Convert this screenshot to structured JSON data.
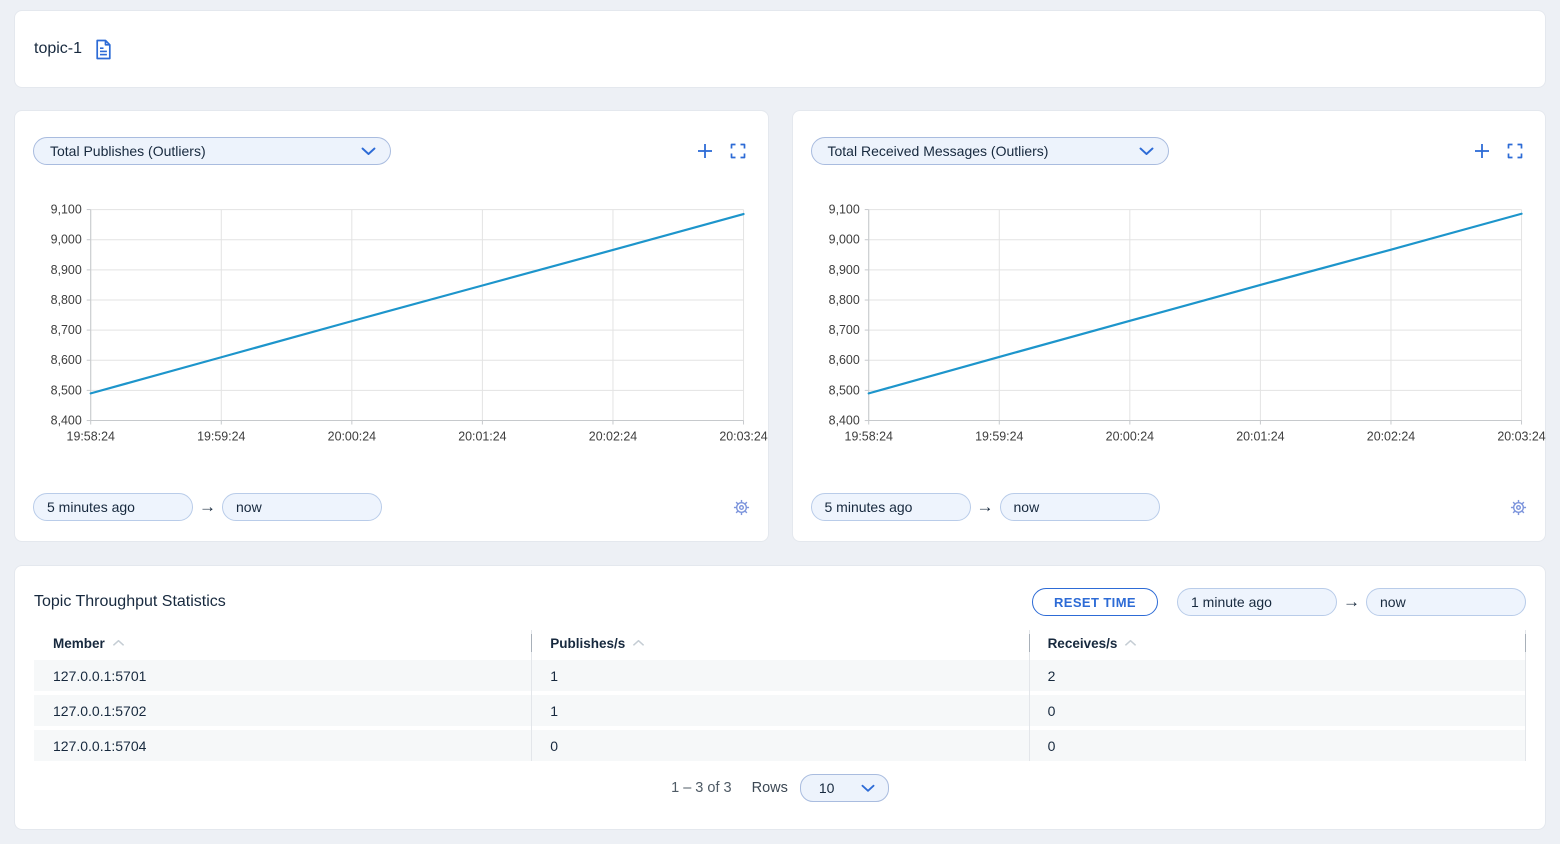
{
  "accent_color": "#2d6bd6",
  "topbar": {
    "title": "topic-1"
  },
  "icons": {
    "arrow": "→"
  },
  "charts": [
    {
      "metric_selector": "Total Publishes (Outliers)",
      "time_from": "5 minutes ago",
      "time_to": "now",
      "chart_data": {
        "type": "line",
        "x": [
          "19:58:24",
          "19:59:24",
          "20:00:24",
          "20:01:24",
          "20:02:24",
          "20:03:24"
        ],
        "series": [
          {
            "name": "Total Publishes",
            "values": [
              8490,
              8610,
              8730,
              8848,
              8966,
              9085
            ]
          }
        ],
        "ylim": [
          8400,
          9100
        ],
        "ytick_step": 100,
        "line_color": "#1d95cb",
        "grid": true,
        "legend": "none"
      }
    },
    {
      "metric_selector": "Total Received Messages (Outliers)",
      "time_from": "5 minutes ago",
      "time_to": "now",
      "chart_data": {
        "type": "line",
        "x": [
          "19:58:24",
          "19:59:24",
          "20:00:24",
          "20:01:24",
          "20:02:24",
          "20:03:24"
        ],
        "series": [
          {
            "name": "Total Received Messages",
            "values": [
              8490,
              8611,
              8731,
              8850,
              8967,
              9086
            ]
          }
        ],
        "ylim": [
          8400,
          9100
        ],
        "ytick_step": 100,
        "line_color": "#1d95cb",
        "grid": true,
        "legend": "none"
      }
    }
  ],
  "stats": {
    "title": "Topic Throughput Statistics",
    "reset_button": "RESET TIME",
    "time_from": "1 minute ago",
    "time_to": "now",
    "table": {
      "columns": [
        "Member",
        "Publishes/s",
        "Receives/s"
      ],
      "rows": [
        [
          "127.0.0.1:5701",
          "1",
          "2"
        ],
        [
          "127.0.0.1:5702",
          "1",
          "0"
        ],
        [
          "127.0.0.1:5704",
          "0",
          "0"
        ]
      ]
    },
    "pagination": {
      "range": "1 – 3 of 3",
      "rows_label": "Rows",
      "rows_per_page": "10"
    }
  }
}
